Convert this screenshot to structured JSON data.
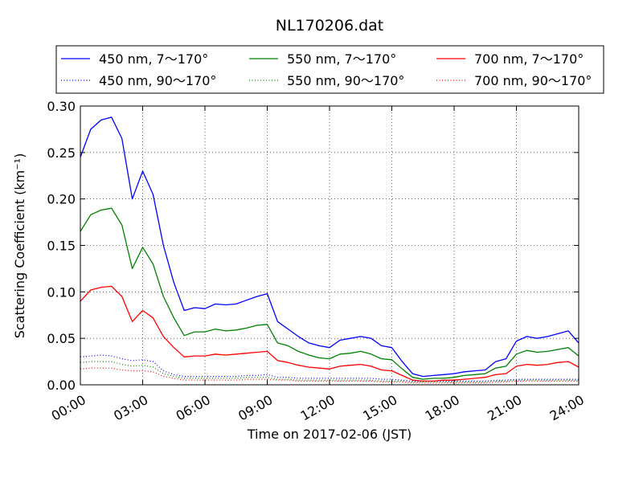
{
  "chart_data": {
    "type": "line",
    "title": "NL170206.dat",
    "xlabel": "Time on 2017-02-06 (JST)",
    "ylabel": "Scattering Coefficient (km⁻¹)",
    "xlim": [
      "00:00",
      "24:00"
    ],
    "ylim": [
      0,
      0.3
    ],
    "x_ticks": [
      "00:00",
      "03:00",
      "06:00",
      "09:00",
      "12:00",
      "15:00",
      "18:00",
      "21:00",
      "24:00"
    ],
    "y_ticks": [
      "0.00",
      "0.05",
      "0.10",
      "0.15",
      "0.20",
      "0.25",
      "0.30"
    ],
    "grid": true,
    "legend_position": "top",
    "x": [
      "00:00",
      "00:30",
      "01:00",
      "01:30",
      "02:00",
      "02:30",
      "03:00",
      "03:30",
      "04:00",
      "04:30",
      "05:00",
      "05:30",
      "06:00",
      "06:30",
      "07:00",
      "07:30",
      "08:00",
      "08:30",
      "09:00",
      "09:30",
      "10:00",
      "10:30",
      "11:00",
      "11:30",
      "12:00",
      "12:30",
      "13:00",
      "13:30",
      "14:00",
      "14:30",
      "15:00",
      "15:30",
      "16:00",
      "16:30",
      "17:00",
      "17:30",
      "18:00",
      "18:30",
      "19:00",
      "19:30",
      "20:00",
      "20:30",
      "21:00",
      "21:30",
      "22:00",
      "22:30",
      "23:00",
      "23:30",
      "24:00"
    ],
    "series": [
      {
        "name": "450 nm, 7～170°",
        "color": "#0000ff",
        "style": "solid",
        "values": [
          0.245,
          0.275,
          0.285,
          0.288,
          0.265,
          0.2,
          0.23,
          0.205,
          0.15,
          0.11,
          0.08,
          0.083,
          0.082,
          0.087,
          0.086,
          0.087,
          0.091,
          0.095,
          0.098,
          0.068,
          0.06,
          0.052,
          0.045,
          0.042,
          0.04,
          0.048,
          0.05,
          0.052,
          0.05,
          0.042,
          0.04,
          0.025,
          0.012,
          0.009,
          0.01,
          0.011,
          0.012,
          0.014,
          0.015,
          0.016,
          0.025,
          0.028,
          0.047,
          0.052,
          0.05,
          0.052,
          0.055,
          0.058,
          0.045
        ]
      },
      {
        "name": "450 nm, 90～170°",
        "color": "#0000ff",
        "style": "dotted",
        "values": [
          0.03,
          0.031,
          0.032,
          0.031,
          0.028,
          0.026,
          0.027,
          0.025,
          0.015,
          0.011,
          0.009,
          0.009,
          0.009,
          0.009,
          0.009,
          0.009,
          0.01,
          0.01,
          0.011,
          0.008,
          0.008,
          0.007,
          0.007,
          0.007,
          0.007,
          0.007,
          0.007,
          0.007,
          0.007,
          0.006,
          0.006,
          0.005,
          0.004,
          0.004,
          0.004,
          0.004,
          0.004,
          0.004,
          0.004,
          0.004,
          0.005,
          0.005,
          0.006,
          0.006,
          0.006,
          0.006,
          0.006,
          0.006,
          0.006
        ]
      },
      {
        "name": "550 nm, 7～170°",
        "color": "#008000",
        "style": "solid",
        "values": [
          0.165,
          0.183,
          0.188,
          0.19,
          0.172,
          0.125,
          0.148,
          0.13,
          0.095,
          0.072,
          0.053,
          0.057,
          0.057,
          0.06,
          0.058,
          0.059,
          0.061,
          0.064,
          0.065,
          0.045,
          0.042,
          0.036,
          0.032,
          0.029,
          0.028,
          0.033,
          0.034,
          0.036,
          0.033,
          0.028,
          0.027,
          0.017,
          0.008,
          0.006,
          0.007,
          0.007,
          0.008,
          0.01,
          0.011,
          0.012,
          0.018,
          0.02,
          0.033,
          0.037,
          0.035,
          0.036,
          0.038,
          0.04,
          0.031
        ]
      },
      {
        "name": "550 nm, 90～170°",
        "color": "#008000",
        "style": "dotted",
        "values": [
          0.024,
          0.025,
          0.025,
          0.025,
          0.022,
          0.02,
          0.021,
          0.019,
          0.012,
          0.009,
          0.007,
          0.007,
          0.007,
          0.007,
          0.007,
          0.007,
          0.008,
          0.008,
          0.008,
          0.006,
          0.006,
          0.005,
          0.005,
          0.005,
          0.005,
          0.005,
          0.005,
          0.005,
          0.005,
          0.004,
          0.004,
          0.004,
          0.003,
          0.003,
          0.003,
          0.003,
          0.003,
          0.003,
          0.003,
          0.003,
          0.004,
          0.004,
          0.005,
          0.005,
          0.005,
          0.005,
          0.005,
          0.005,
          0.005
        ]
      },
      {
        "name": "700 nm, 7～170°",
        "color": "#ff0000",
        "style": "solid",
        "values": [
          0.09,
          0.102,
          0.105,
          0.106,
          0.095,
          0.068,
          0.08,
          0.072,
          0.052,
          0.04,
          0.03,
          0.031,
          0.031,
          0.033,
          0.032,
          0.033,
          0.034,
          0.035,
          0.036,
          0.026,
          0.024,
          0.021,
          0.019,
          0.018,
          0.017,
          0.02,
          0.021,
          0.022,
          0.02,
          0.016,
          0.015,
          0.01,
          0.005,
          0.004,
          0.004,
          0.005,
          0.005,
          0.006,
          0.007,
          0.008,
          0.011,
          0.012,
          0.02,
          0.022,
          0.021,
          0.022,
          0.024,
          0.025,
          0.019
        ]
      },
      {
        "name": "700 nm, 90～170°",
        "color": "#ff0000",
        "style": "dotted",
        "values": [
          0.017,
          0.018,
          0.018,
          0.018,
          0.016,
          0.015,
          0.015,
          0.014,
          0.009,
          0.007,
          0.005,
          0.005,
          0.005,
          0.005,
          0.005,
          0.005,
          0.006,
          0.006,
          0.006,
          0.005,
          0.005,
          0.004,
          0.004,
          0.004,
          0.004,
          0.004,
          0.004,
          0.004,
          0.004,
          0.003,
          0.003,
          0.003,
          0.002,
          0.002,
          0.002,
          0.002,
          0.002,
          0.002,
          0.002,
          0.002,
          0.003,
          0.003,
          0.004,
          0.004,
          0.004,
          0.004,
          0.004,
          0.004,
          0.004
        ]
      }
    ]
  }
}
